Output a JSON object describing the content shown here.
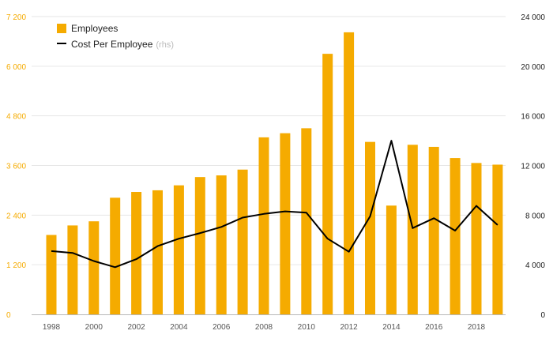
{
  "colors": {
    "bar": "#F5AB00",
    "line": "#000000",
    "left_axis_text": "#F5AB00",
    "grid": "#e6e6e6",
    "baseline": "#b8b8b8",
    "muted": "#bbbbbb"
  },
  "legend": {
    "placement": "top-left",
    "items": [
      {
        "label": "Employees",
        "note": "",
        "kind": "bar"
      },
      {
        "label": "Cost Per Employee",
        "note": "(rhs)",
        "kind": "line"
      }
    ]
  },
  "chart_data": {
    "type": "bar",
    "x": [
      1998,
      1999,
      2000,
      2001,
      2002,
      2003,
      2004,
      2005,
      2006,
      2007,
      2008,
      2009,
      2010,
      2011,
      2012,
      2013,
      2014,
      2015,
      2016,
      2017,
      2018,
      2019
    ],
    "x_tick_labels": [
      "1998",
      "2000",
      "2002",
      "2004",
      "2006",
      "2008",
      "2010",
      "2012",
      "2014",
      "2016",
      "2018"
    ],
    "series": [
      {
        "name": "Employees",
        "type": "bar",
        "axis": "left",
        "values": [
          1920,
          2150,
          2250,
          2820,
          2960,
          3000,
          3120,
          3320,
          3360,
          3500,
          4280,
          4380,
          4500,
          6300,
          6820,
          4170,
          2630,
          4100,
          4050,
          3780,
          3660,
          3620
        ]
      },
      {
        "name": "Cost Per Employee",
        "type": "line",
        "axis": "right",
        "values": [
          5100,
          4950,
          4300,
          3800,
          4450,
          5500,
          6100,
          6550,
          7050,
          7800,
          8100,
          8300,
          8200,
          6100,
          5050,
          7900,
          14000,
          6950,
          7750,
          6750,
          8750,
          7200
        ]
      }
    ],
    "left_axis": {
      "ylim": [
        0,
        7200
      ],
      "ticks": [
        0,
        1200,
        2400,
        3600,
        4800,
        6000,
        7200
      ],
      "tick_labels": [
        "0",
        "1 200",
        "2 400",
        "3 600",
        "4 800",
        "6 000",
        "7 200"
      ]
    },
    "right_axis": {
      "ylim": [
        0,
        24000
      ],
      "ticks": [
        0,
        4000,
        8000,
        12000,
        16000,
        20000,
        24000
      ],
      "tick_labels": [
        "0",
        "4 000",
        "8 000",
        "12 000",
        "16 000",
        "20 000",
        "24 000"
      ]
    },
    "grid": true,
    "title": "",
    "xlabel": "",
    "ylabel": ""
  }
}
